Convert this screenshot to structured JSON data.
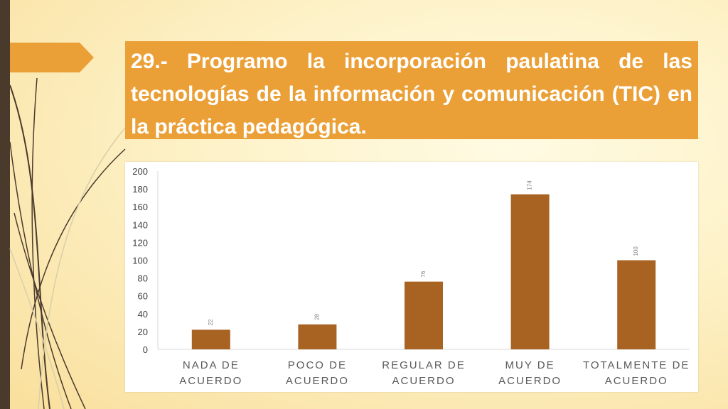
{
  "slide": {
    "title": "29.- Programo la incorporación paulatina de las tecnologías de la información y comunicación (TIC) en la práctica pedagógica."
  },
  "colors": {
    "title_bg": "#eba037",
    "bar": "#a86222",
    "left_bar": "#4a3a2c"
  },
  "chart_data": {
    "type": "bar",
    "categories": [
      [
        "NADA DE",
        "ACUERDO"
      ],
      [
        "POCO DE",
        "ACUERDO"
      ],
      [
        "REGULAR DE",
        "ACUERDO"
      ],
      [
        "MUY DE",
        "ACUERDO"
      ],
      [
        "TOTALMENTE DE",
        "ACUERDO"
      ]
    ],
    "values": [
      22,
      28,
      76,
      174,
      100
    ],
    "ylim": [
      0,
      200
    ],
    "yticks": [
      0,
      20,
      40,
      60,
      80,
      100,
      120,
      140,
      160,
      180,
      200
    ],
    "grid": false,
    "legend": "none"
  }
}
